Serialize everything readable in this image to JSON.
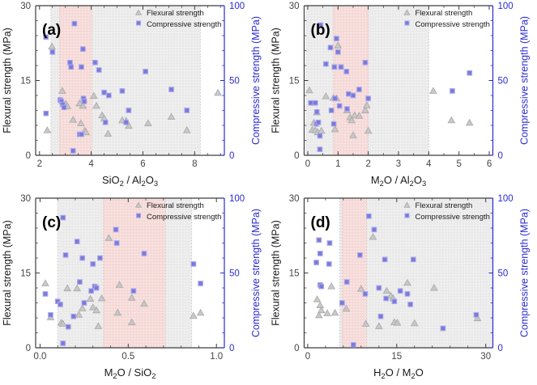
{
  "figure": {
    "colors": {
      "flexural_marker": "#c7c7c7",
      "flexural_edge": "#a9a9a9",
      "compressive_marker": "#7b79da",
      "compressive_edge": "#a9a7ea",
      "right_axis": "#2b2bd0",
      "left_axis": "#3c3c3c",
      "tick_label": "#444444",
      "gray_band": "#eaeaea",
      "pink_band": "#f5d9d7",
      "gray_band_edge": "#bfbfbf",
      "pink_band_edge": "#dfb3b0"
    },
    "legend": {
      "flexural_label": "Flexural strength",
      "compressive_label": "Compressive strength",
      "position": "top-right"
    }
  },
  "chart_data": [
    {
      "type": "scatter",
      "panel_label": "(a)",
      "xlabel": "SiO_2 / Al_2O_3",
      "ylabel_left": "Flexural strength (MPa)",
      "ylabel_right": "Compressive strength (MPa)",
      "xlim": [
        1.85,
        9.15
      ],
      "xticks": [
        2,
        4,
        6,
        8
      ],
      "xtick_labels": [
        "2",
        "4",
        "6",
        "8"
      ],
      "xminor_step": 0.5,
      "ylim_left": [
        0,
        30
      ],
      "yticks_left": [
        0,
        15,
        30
      ],
      "yminor_step_left": 3,
      "ylim_right": [
        0,
        100
      ],
      "yticks_right": [
        0,
        50,
        100
      ],
      "yminor_step_right": 10,
      "bands": {
        "gray": [
          2.44,
          8.22
        ],
        "pink": [
          2.78,
          4.02
        ]
      },
      "series": [
        {
          "name": "Flexural strength",
          "axis": "left",
          "marker": "triangle",
          "points": [
            [
              2.3,
              5.0
            ],
            [
              2.48,
              21.8
            ],
            [
              2.88,
              12.9
            ],
            [
              3.02,
              10.3
            ],
            [
              3.08,
              9.8
            ],
            [
              3.3,
              7.1
            ],
            [
              3.55,
              10.4
            ],
            [
              3.6,
              6.4
            ],
            [
              3.68,
              9.9
            ],
            [
              3.75,
              4.9
            ],
            [
              3.8,
              4.6
            ],
            [
              4.1,
              11.9
            ],
            [
              4.2,
              9.9
            ],
            [
              4.42,
              8.0
            ],
            [
              4.5,
              7.4
            ],
            [
              4.65,
              4.3
            ],
            [
              5.2,
              7.0
            ],
            [
              5.35,
              6.9
            ],
            [
              5.45,
              5.9
            ],
            [
              6.2,
              6.4
            ],
            [
              7.1,
              7.7
            ],
            [
              7.7,
              5.0
            ],
            [
              8.9,
              12.5
            ]
          ]
        },
        {
          "name": "Compressive strength",
          "axis": "right",
          "marker": "square",
          "points": [
            [
              2.25,
              79
            ],
            [
              2.25,
              28
            ],
            [
              2.5,
              69
            ],
            [
              2.8,
              37
            ],
            [
              2.85,
              36
            ],
            [
              2.9,
              34
            ],
            [
              2.95,
              32
            ],
            [
              3.18,
              62
            ],
            [
              3.22,
              59
            ],
            [
              3.3,
              3
            ],
            [
              3.35,
              88
            ],
            [
              3.55,
              14
            ],
            [
              3.62,
              14
            ],
            [
              3.62,
              59
            ],
            [
              3.68,
              71
            ],
            [
              3.7,
              38
            ],
            [
              3.73,
              36
            ],
            [
              4.15,
              62
            ],
            [
              4.3,
              57
            ],
            [
              4.5,
              42
            ],
            [
              4.55,
              22
            ],
            [
              4.68,
              40
            ],
            [
              5.2,
              43
            ],
            [
              5.35,
              22
            ],
            [
              5.45,
              30
            ],
            [
              6.1,
              56
            ],
            [
              7.1,
              44
            ],
            [
              7.7,
              30
            ]
          ]
        }
      ]
    },
    {
      "type": "scatter",
      "panel_label": "(b)",
      "xlabel": "M_2O / Al_2O_3",
      "ylabel_left": "Flexural strength (MPa)",
      "ylabel_right": "Compressive strength (MPa)",
      "xlim": [
        -0.12,
        6.12
      ],
      "xticks": [
        0,
        1,
        2,
        3,
        4,
        5,
        6
      ],
      "xtick_labels": [
        "0",
        "1",
        "2",
        "3",
        "4",
        "5",
        "6"
      ],
      "xminor_step": 0.5,
      "ylim_left": [
        0,
        30
      ],
      "yticks_left": [
        0,
        15,
        30
      ],
      "yminor_step_left": 3,
      "ylim_right": [
        0,
        100
      ],
      "yticks_right": [
        0,
        50,
        100
      ],
      "yminor_step_right": 10,
      "bands": {
        "gray": [
          -0.05,
          4.0
        ],
        "pink": [
          0.85,
          2.0
        ]
      },
      "series": [
        {
          "name": "Flexural strength",
          "axis": "left",
          "marker": "triangle",
          "points": [
            [
              0.05,
              13.0
            ],
            [
              0.15,
              5.1
            ],
            [
              0.2,
              6.5
            ],
            [
              0.25,
              5.0
            ],
            [
              0.3,
              8.6
            ],
            [
              0.33,
              4.6
            ],
            [
              0.45,
              4.9
            ],
            [
              0.6,
              11.8
            ],
            [
              0.85,
              11.5
            ],
            [
              0.9,
              5.2
            ],
            [
              0.95,
              11.4
            ],
            [
              1.0,
              22.0
            ],
            [
              1.3,
              9.0
            ],
            [
              1.4,
              7.6
            ],
            [
              1.45,
              7.0
            ],
            [
              1.5,
              4.0
            ],
            [
              1.55,
              8.0
            ],
            [
              1.7,
              7.9
            ],
            [
              1.9,
              9.0
            ],
            [
              1.95,
              10.0
            ],
            [
              2.0,
              4.9
            ],
            [
              4.15,
              12.9
            ],
            [
              4.75,
              7.0
            ],
            [
              5.35,
              6.5
            ]
          ]
        },
        {
          "name": "Compressive strength",
          "axis": "right",
          "marker": "square",
          "points": [
            [
              0.1,
              35
            ],
            [
              0.25,
              35
            ],
            [
              0.29,
              21
            ],
            [
              0.3,
              29
            ],
            [
              0.35,
              22
            ],
            [
              0.4,
              13
            ],
            [
              0.4,
              4
            ],
            [
              0.42,
              87
            ],
            [
              0.6,
              61
            ],
            [
              0.75,
              72
            ],
            [
              0.78,
              30
            ],
            [
              0.86,
              21
            ],
            [
              0.88,
              59
            ],
            [
              0.9,
              38
            ],
            [
              0.95,
              78
            ],
            [
              1.0,
              69
            ],
            [
              1.05,
              33
            ],
            [
              1.1,
              59
            ],
            [
              1.28,
              56
            ],
            [
              1.3,
              31
            ],
            [
              1.35,
              41
            ],
            [
              1.5,
              40
            ],
            [
              1.7,
              44
            ],
            [
              1.9,
              62
            ],
            [
              2.0,
              38
            ],
            [
              4.78,
              43
            ],
            [
              5.35,
              55
            ]
          ]
        }
      ]
    },
    {
      "type": "scatter",
      "panel_label": "(c)",
      "xlabel": "M_2O / SiO_2",
      "ylabel_left": "Flexural strength (MPa)",
      "ylabel_right": "Compressive strength (MPa)",
      "xlim": [
        -0.025,
        1.045
      ],
      "xticks": [
        0.0,
        0.5,
        1.0
      ],
      "xtick_labels": [
        "0.0",
        "0.5",
        "1.0"
      ],
      "xminor_step": 0.1,
      "ylim_left": [
        0,
        30
      ],
      "yticks_left": [
        0,
        15,
        30
      ],
      "yminor_step_left": 3,
      "ylim_right": [
        0,
        100
      ],
      "yticks_right": [
        0,
        50,
        100
      ],
      "yminor_step_right": 10,
      "bands": {
        "gray": [
          0.1,
          0.86
        ],
        "pink": [
          0.36,
          0.71
        ]
      },
      "series": [
        {
          "name": "Flexural strength",
          "axis": "left",
          "marker": "triangle",
          "points": [
            [
              0.03,
              12.9
            ],
            [
              0.06,
              6.1
            ],
            [
              0.12,
              5.0
            ],
            [
              0.13,
              4.8
            ],
            [
              0.155,
              11.9
            ],
            [
              0.21,
              11.9
            ],
            [
              0.22,
              6.6
            ],
            [
              0.24,
              7.9
            ],
            [
              0.285,
              9.8
            ],
            [
              0.3,
              8.1
            ],
            [
              0.32,
              7.5
            ],
            [
              0.33,
              4.3
            ],
            [
              0.35,
              9.9
            ],
            [
              0.39,
              22.0
            ],
            [
              0.44,
              7.0
            ],
            [
              0.45,
              12.6
            ],
            [
              0.52,
              5.1
            ],
            [
              0.52,
              10.0
            ],
            [
              0.59,
              8.8
            ],
            [
              0.87,
              6.4
            ],
            [
              0.91,
              7.0
            ]
          ]
        },
        {
          "name": "Compressive strength",
          "axis": "right",
          "marker": "square",
          "points": [
            [
              0.03,
              36
            ],
            [
              0.06,
              22
            ],
            [
              0.1,
              31
            ],
            [
              0.115,
              29
            ],
            [
              0.13,
              87
            ],
            [
              0.13,
              3
            ],
            [
              0.145,
              62
            ],
            [
              0.16,
              14
            ],
            [
              0.19,
              21
            ],
            [
              0.21,
              71
            ],
            [
              0.225,
              44
            ],
            [
              0.24,
              60
            ],
            [
              0.25,
              30
            ],
            [
              0.29,
              38
            ],
            [
              0.3,
              56
            ],
            [
              0.31,
              41
            ],
            [
              0.32,
              40
            ],
            [
              0.34,
              60
            ],
            [
              0.43,
              79
            ],
            [
              0.435,
              70
            ],
            [
              0.53,
              38
            ],
            [
              0.59,
              63
            ],
            [
              0.87,
              56
            ],
            [
              0.91,
              43
            ]
          ]
        }
      ]
    },
    {
      "type": "scatter",
      "panel_label": "(d)",
      "xlabel": "H_2O / M_2O",
      "ylabel_left": "Flexural strength (MPa)",
      "ylabel_right": "Compressive strength (MPa)",
      "xlim": [
        -0.6,
        31.2
      ],
      "xticks": [
        0,
        15,
        30
      ],
      "xtick_labels": [
        "0",
        "15",
        "30"
      ],
      "xminor_step": 3,
      "ylim_left": [
        0,
        30
      ],
      "yticks_left": [
        0,
        15,
        30
      ],
      "yminor_step_left": 3,
      "ylim_right": [
        0,
        100
      ],
      "yticks_right": [
        0,
        50,
        100
      ],
      "yminor_step_right": 10,
      "bands": {
        "gray": [
          5.4,
          31.2
        ],
        "pink": [
          5.8,
          9.9
        ]
      },
      "series": [
        {
          "name": "Flexural strength",
          "axis": "left",
          "marker": "triangle",
          "points": [
            [
              1.6,
              9.7
            ],
            [
              1.9,
              6.5
            ],
            [
              2.1,
              8.5
            ],
            [
              2.3,
              7.5
            ],
            [
              3.3,
              6.9
            ],
            [
              4.0,
              12.3
            ],
            [
              4.6,
              7.0
            ],
            [
              6.5,
              7.8
            ],
            [
              9.0,
              11.8
            ],
            [
              9.8,
              4.8
            ],
            [
              11.0,
              22.2
            ],
            [
              12.0,
              4.3
            ],
            [
              13.3,
              11.4
            ],
            [
              14.0,
              10.4
            ],
            [
              14.4,
              9.9
            ],
            [
              14.6,
              5.1
            ],
            [
              15.1,
              5.0
            ],
            [
              16.8,
              13.0
            ],
            [
              18.0,
              4.9
            ],
            [
              21.3,
              12.0
            ],
            [
              28.6,
              5.9
            ]
          ]
        },
        {
          "name": "Compressive strength",
          "axis": "right",
          "marker": "square",
          "points": [
            [
              1.45,
              57
            ],
            [
              1.9,
              72
            ],
            [
              2.1,
              63
            ],
            [
              2.1,
              42
            ],
            [
              2.3,
              41
            ],
            [
              3.6,
              56
            ],
            [
              3.7,
              70
            ],
            [
              5.8,
              30
            ],
            [
              6.6,
              44
            ],
            [
              7.7,
              2
            ],
            [
              8.8,
              62
            ],
            [
              9.7,
              36
            ],
            [
              10.3,
              88
            ],
            [
              11.2,
              79
            ],
            [
              12.0,
              40
            ],
            [
              12.3,
              21
            ],
            [
              13.0,
              59
            ],
            [
              13.2,
              33
            ],
            [
              14.6,
              31
            ],
            [
              15.6,
              38
            ],
            [
              16.8,
              36
            ],
            [
              17.3,
              29
            ],
            [
              17.8,
              59
            ],
            [
              22.8,
              13
            ],
            [
              28.4,
              22
            ]
          ]
        }
      ]
    }
  ]
}
